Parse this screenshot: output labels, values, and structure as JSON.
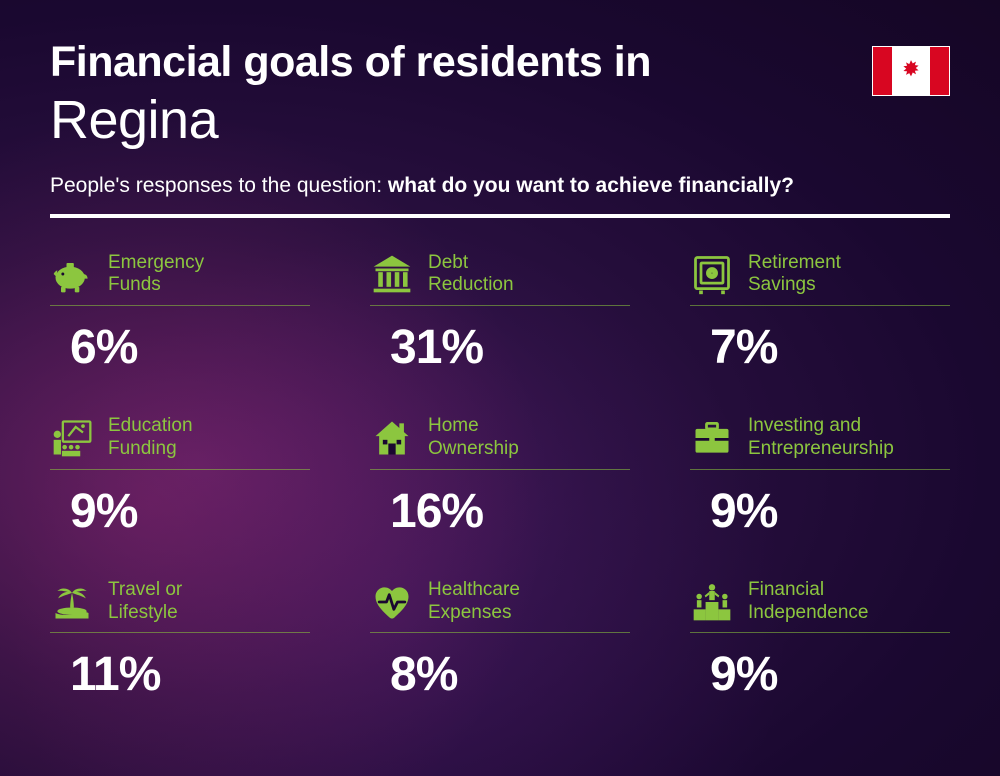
{
  "header": {
    "title_prefix": "Financial goals of residents in",
    "city": "Regina",
    "subtitle_lead": "People's responses to the question: ",
    "subtitle_bold": "what do you want to achieve financially?"
  },
  "flag": {
    "country": "Canada",
    "bar_color": "#d80621",
    "bg_color": "#ffffff"
  },
  "styling": {
    "accent_color": "#8cc63f",
    "text_color": "#ffffff",
    "title_prefix_fontsize": 43,
    "city_fontsize": 54,
    "subtitle_fontsize": 21,
    "label_fontsize": 19,
    "value_fontsize": 48,
    "divider_height": 4,
    "grid_cols": 3,
    "background_gradient": [
      "#4a1a5a",
      "#2a1040",
      "#1a0830",
      "#150625"
    ]
  },
  "items": [
    {
      "icon": "piggy-bank",
      "label": "Emergency\nFunds",
      "value": "6%"
    },
    {
      "icon": "bank",
      "label": "Debt\nReduction",
      "value": "31%"
    },
    {
      "icon": "safe",
      "label": "Retirement\nSavings",
      "value": "7%"
    },
    {
      "icon": "education",
      "label": "Education\nFunding",
      "value": "9%"
    },
    {
      "icon": "house",
      "label": "Home\nOwnership",
      "value": "16%"
    },
    {
      "icon": "briefcase",
      "label": "Investing and\nEntrepreneurship",
      "value": "9%"
    },
    {
      "icon": "palm-tree",
      "label": "Travel or\nLifestyle",
      "value": "11%"
    },
    {
      "icon": "heart-pulse",
      "label": "Healthcare\nExpenses",
      "value": "8%"
    },
    {
      "icon": "podium",
      "label": "Financial\nIndependence",
      "value": "9%"
    }
  ]
}
